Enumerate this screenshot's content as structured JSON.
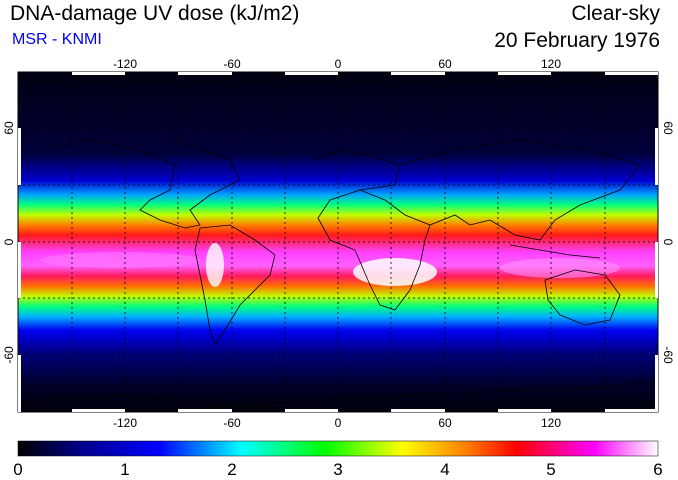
{
  "header": {
    "title": "DNA-damage UV dose (kJ/m2)",
    "source": "MSR - KNMI",
    "mode": "Clear-sky",
    "date": "20 February 1976"
  },
  "map": {
    "lon_ticks": [
      "-120",
      "-60",
      "0",
      "60",
      "120"
    ],
    "lat_ticks": [
      "60",
      "0",
      "-60"
    ],
    "lon_range": [
      -180,
      180
    ],
    "lat_range": [
      -90,
      90
    ],
    "grid_step_deg": 30
  },
  "colorbar": {
    "labels": [
      "0",
      "1",
      "2",
      "3",
      "4",
      "5",
      "6"
    ],
    "range": [
      0,
      6
    ],
    "colors": [
      "#000000",
      "#00008b",
      "#0000ff",
      "#00ffff",
      "#00ff00",
      "#ffff00",
      "#ff7f00",
      "#ff0000",
      "#ff00ff",
      "#ffffff"
    ]
  },
  "colors": {
    "source_text": "#0000ee",
    "grid": "#000000"
  }
}
